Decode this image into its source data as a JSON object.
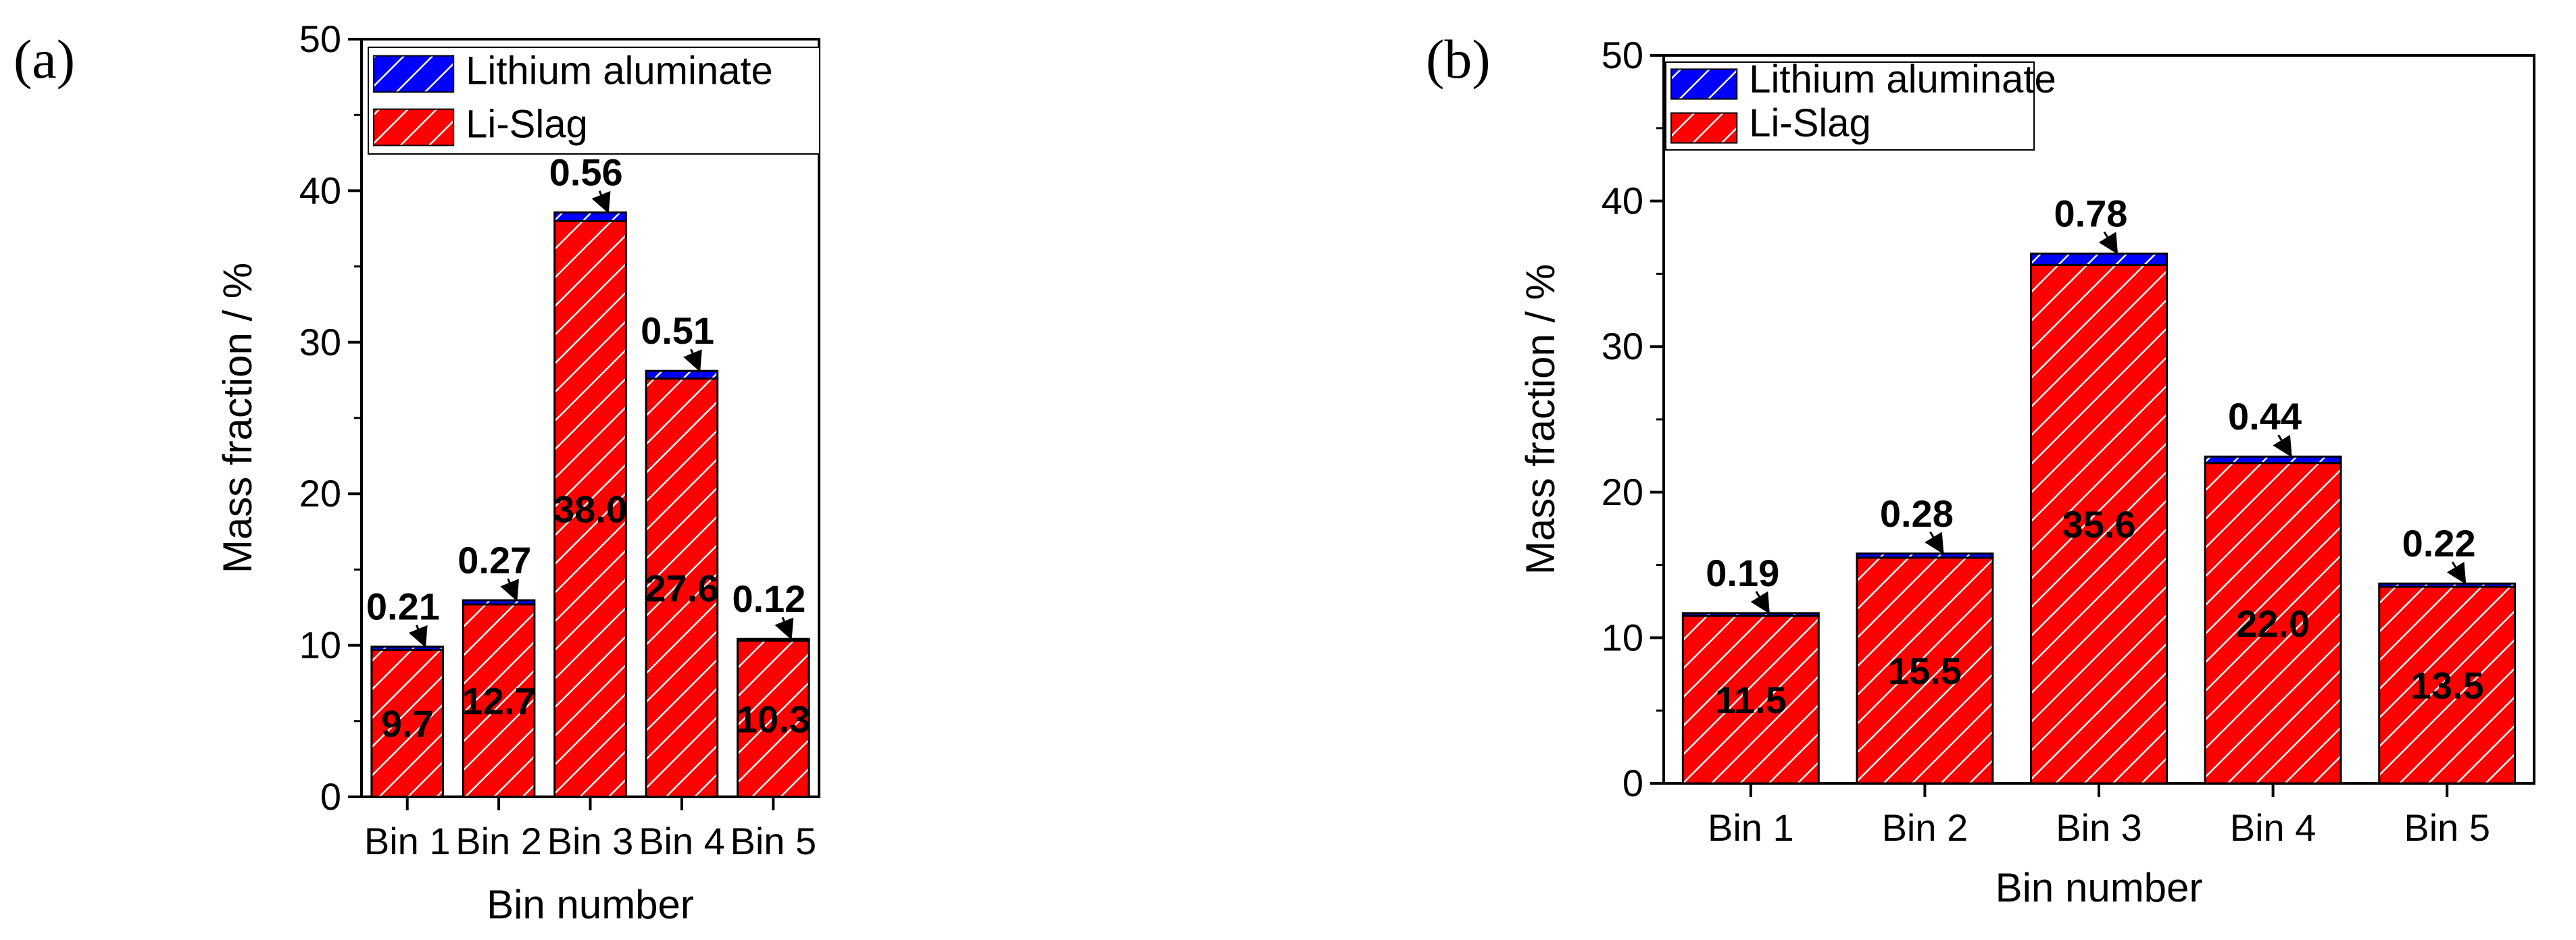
{
  "colors": {
    "li_slag": "#ff0000",
    "lithium_aluminate": "#0000ff",
    "hatch": "#ffffff",
    "axis": "#000000"
  },
  "chart_data": [
    {
      "panel": "(a)",
      "type": "bar",
      "stacked": true,
      "categories": [
        "Bin 1",
        "Bin 2",
        "Bin 3",
        "Bin 4",
        "Bin 5"
      ],
      "series": [
        {
          "name": "Li-Slag",
          "values": [
            9.7,
            12.7,
            38.0,
            27.6,
            10.3
          ],
          "labels": [
            "9.7",
            "12.7",
            "38.0",
            "27.6",
            "10.3"
          ]
        },
        {
          "name": "Lithium aluminate",
          "values": [
            0.21,
            0.27,
            0.56,
            0.51,
            0.12
          ],
          "labels": [
            "0.21",
            "0.27",
            "0.56",
            "0.51",
            "0.12"
          ]
        }
      ],
      "xlabel": "Bin number",
      "ylabel": "Mass fraction / %",
      "ylim": [
        0,
        50
      ],
      "yticks": [
        0,
        10,
        20,
        30,
        40,
        50
      ],
      "legend_position": "top-left",
      "grid": false
    },
    {
      "panel": "(b)",
      "type": "bar",
      "stacked": true,
      "categories": [
        "Bin 1",
        "Bin 2",
        "Bin 3",
        "Bin 4",
        "Bin 5"
      ],
      "series": [
        {
          "name": "Li-Slag",
          "values": [
            11.5,
            15.5,
            35.6,
            22.0,
            13.5
          ],
          "labels": [
            "11.5",
            "15.5",
            "35.6",
            "22.0",
            "13.5"
          ]
        },
        {
          "name": "Lithium aluminate",
          "values": [
            0.19,
            0.28,
            0.78,
            0.44,
            0.22
          ],
          "labels": [
            "0.19",
            "0.28",
            "0.78",
            "0.44",
            "0.22"
          ]
        }
      ],
      "xlabel": "Bin number",
      "ylabel": "Mass fraction / %",
      "ylim": [
        0,
        50
      ],
      "yticks": [
        0,
        10,
        20,
        30,
        40,
        50
      ],
      "legend_position": "top-left",
      "grid": false
    }
  ]
}
